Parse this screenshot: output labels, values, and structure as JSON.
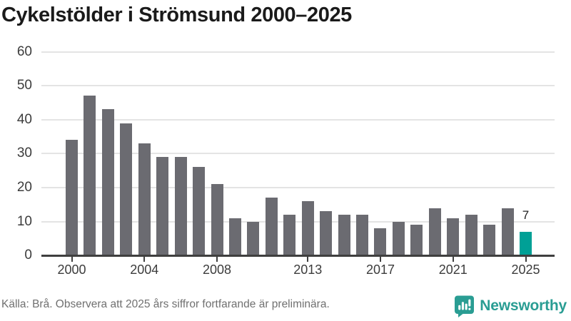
{
  "title": "Cykelstölder i Strömsund 2000–2025",
  "footer": {
    "source_note": "Källa: Brå. Observera att 2025 års siffror fortfarande är preliminära.",
    "brand": "Newsworthy"
  },
  "colors": {
    "bar": "#6b6b71",
    "highlight": "#00a096",
    "grid": "#e4e4e4",
    "axis": "#3f3f3f",
    "axis_label": "#3c3c3c",
    "title_text": "#1a1a1a",
    "muted_text": "#707070",
    "brand": "#2a9d93"
  },
  "chart_data": {
    "type": "bar",
    "title": "Cykelstölder i Strömsund 2000–2025",
    "categories": [
      "2000",
      "2001",
      "2002",
      "2003",
      "2004",
      "2005",
      "2006",
      "2007",
      "2008",
      "2009",
      "2010",
      "2011",
      "2012",
      "2013",
      "2014",
      "2015",
      "2016",
      "2017",
      "2018",
      "2019",
      "2020",
      "2021",
      "2022",
      "2023",
      "2024",
      "2025"
    ],
    "values": [
      34,
      47,
      43,
      39,
      33,
      29,
      29,
      26,
      21,
      11,
      10,
      17,
      12,
      16,
      13,
      12,
      12,
      8,
      10,
      9,
      14,
      11,
      12,
      9,
      14,
      7
    ],
    "xlabel": "",
    "ylabel": "",
    "ylim": [
      0,
      60
    ],
    "y_ticks": [
      0,
      10,
      20,
      30,
      40,
      50,
      60
    ],
    "x_tick_labels": [
      "2000",
      "2004",
      "2008",
      "2013",
      "2017",
      "2021",
      "2025"
    ],
    "x_tick_indices": [
      0,
      4,
      8,
      13,
      17,
      21,
      25
    ],
    "grid": true,
    "legend_position": "none",
    "highlight": {
      "index": 25,
      "category": "2025",
      "value": 7,
      "value_label": "7"
    }
  }
}
